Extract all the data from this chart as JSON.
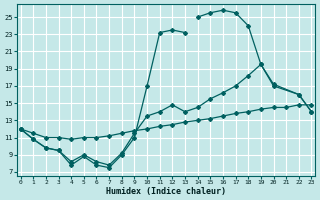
{
  "xlabel": "Humidex (Indice chaleur)",
  "background_color": "#c5e8e8",
  "grid_color": "#b0d0d0",
  "line_color": "#006060",
  "xlim": [
    -0.3,
    23.3
  ],
  "ylim": [
    6.5,
    26.5
  ],
  "xticks": [
    0,
    1,
    2,
    3,
    4,
    5,
    6,
    7,
    8,
    9,
    10,
    11,
    12,
    13,
    14,
    15,
    16,
    17,
    18,
    19,
    20,
    21,
    22,
    23
  ],
  "yticks": [
    7,
    9,
    11,
    13,
    15,
    17,
    19,
    21,
    23,
    25
  ],
  "line1_x": [
    0,
    1,
    2,
    3,
    4,
    5,
    6,
    7,
    8,
    9,
    10,
    11,
    12,
    13
  ],
  "line1_y": [
    12.0,
    10.8,
    9.8,
    9.5,
    7.8,
    8.8,
    7.8,
    7.5,
    9.0,
    11.0,
    17.0,
    23.2,
    23.5,
    23.2
  ],
  "line2_x": [
    0,
    1,
    2,
    3,
    4,
    5,
    6,
    7,
    8,
    9,
    10,
    11,
    12,
    13,
    14,
    15,
    16,
    17,
    18,
    19,
    20,
    22,
    23
  ],
  "line2_y": [
    12.0,
    10.8,
    9.8,
    9.5,
    8.2,
    9.0,
    8.2,
    7.8,
    9.2,
    11.5,
    13.5,
    14.0,
    14.8,
    14.0,
    14.5,
    15.5,
    16.2,
    17.0,
    18.2,
    19.5,
    17.0,
    16.0,
    14.0
  ],
  "line3_x": [
    14,
    15,
    16,
    17,
    18,
    19,
    20,
    22,
    23
  ],
  "line3_y": [
    25.0,
    25.5,
    25.8,
    25.5,
    24.0,
    19.5,
    17.2,
    16.0,
    14.0
  ],
  "line4_x": [
    0,
    1,
    2,
    3,
    4,
    5,
    6,
    7,
    8,
    9,
    10,
    11,
    12,
    13,
    14,
    15,
    16,
    17,
    18,
    19,
    20,
    21,
    22,
    23
  ],
  "line4_y": [
    12.0,
    11.5,
    11.0,
    11.0,
    10.8,
    11.0,
    11.0,
    11.2,
    11.5,
    11.8,
    12.0,
    12.3,
    12.5,
    12.8,
    13.0,
    13.2,
    13.5,
    13.8,
    14.0,
    14.3,
    14.5,
    14.5,
    14.8,
    14.8
  ]
}
